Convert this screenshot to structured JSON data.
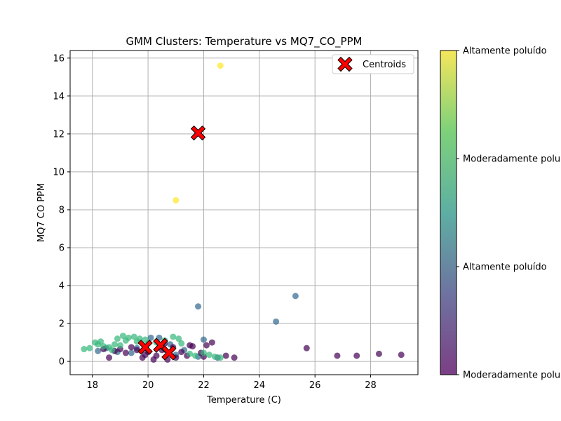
{
  "chart_data": {
    "type": "scatter",
    "title": "GMM Clusters: Temperature vs MQ7_CO_PPM",
    "xlabel": "Temperature (C)",
    "ylabel": "MQ7 CO PPM",
    "xlim": [
      17.2,
      29.7
    ],
    "ylim": [
      -0.7,
      16.4
    ],
    "xticks": [
      18,
      20,
      22,
      24,
      26,
      28
    ],
    "yticks": [
      0,
      2,
      4,
      6,
      8,
      10,
      12,
      14,
      16
    ],
    "grid": true,
    "legend": {
      "placement": "top-right",
      "entries": [
        "Centroids"
      ]
    },
    "colorbar": {
      "colormap": "viridis",
      "range": [
        0,
        3
      ],
      "ticks": [
        0,
        1,
        2,
        3
      ],
      "tick_labels": [
        "Moderadamente poluído",
        "Altamente poluído",
        "Moderadamente poluído",
        "Altamente poluído"
      ]
    },
    "colors": {
      "cluster_0": "#440154",
      "cluster_1": "#31688e",
      "cluster_2": "#35b779",
      "cluster_3": "#fde725",
      "centroid_fill": "#ff0000",
      "centroid_edge": "#000000",
      "grid": "#b0b0b0"
    },
    "series": [
      {
        "cluster": 3,
        "points": [
          [
            22.6,
            15.6
          ],
          [
            21.0,
            8.5
          ]
        ]
      },
      {
        "cluster": 1,
        "points": [
          [
            21.8,
            2.9
          ],
          [
            25.3,
            3.45
          ],
          [
            24.6,
            2.1
          ],
          [
            22.0,
            1.15
          ],
          [
            20.1,
            1.25
          ],
          [
            18.2,
            0.55
          ],
          [
            18.9,
            0.5
          ],
          [
            19.6,
            0.7
          ],
          [
            20.4,
            1.25
          ],
          [
            21.3,
            0.6
          ],
          [
            21.8,
            0.25
          ],
          [
            22.5,
            0.2
          ],
          [
            18.5,
            0.7
          ],
          [
            19.4,
            0.45
          ],
          [
            20.8,
            0.9
          ],
          [
            21.0,
            0.35
          ]
        ]
      },
      {
        "cluster": 0,
        "points": [
          [
            25.7,
            0.7
          ],
          [
            26.8,
            0.3
          ],
          [
            27.5,
            0.3
          ],
          [
            28.3,
            0.4
          ],
          [
            29.1,
            0.35
          ],
          [
            23.1,
            0.2
          ],
          [
            22.8,
            0.3
          ],
          [
            22.3,
            1.0
          ],
          [
            22.1,
            0.85
          ],
          [
            21.6,
            0.8
          ],
          [
            21.2,
            0.5
          ],
          [
            21.0,
            0.2
          ],
          [
            20.9,
            0.75
          ],
          [
            20.7,
            0.1
          ],
          [
            20.5,
            0.6
          ],
          [
            20.3,
            0.3
          ],
          [
            20.0,
            0.5
          ],
          [
            19.8,
            0.2
          ],
          [
            19.6,
            0.6
          ],
          [
            19.4,
            0.75
          ],
          [
            19.2,
            0.45
          ],
          [
            19.0,
            0.65
          ],
          [
            18.8,
            0.55
          ],
          [
            18.6,
            0.2
          ],
          [
            18.4,
            0.65
          ],
          [
            21.4,
            0.3
          ],
          [
            21.9,
            0.45
          ],
          [
            22.0,
            0.25
          ],
          [
            21.5,
            0.85
          ],
          [
            20.6,
            0.95
          ],
          [
            20.2,
            0.1
          ],
          [
            19.9,
            0.35
          ]
        ]
      },
      {
        "cluster": 2,
        "points": [
          [
            17.7,
            0.65
          ],
          [
            17.9,
            0.7
          ],
          [
            18.1,
            1.0
          ],
          [
            18.2,
            0.9
          ],
          [
            18.3,
            1.05
          ],
          [
            18.4,
            0.8
          ],
          [
            18.6,
            0.75
          ],
          [
            18.8,
            0.9
          ],
          [
            18.9,
            1.2
          ],
          [
            19.1,
            1.35
          ],
          [
            19.2,
            1.1
          ],
          [
            19.3,
            1.25
          ],
          [
            19.5,
            1.3
          ],
          [
            19.7,
            1.2
          ],
          [
            19.9,
            1.15
          ],
          [
            20.0,
            0.95
          ],
          [
            20.3,
            1.0
          ],
          [
            20.6,
            1.1
          ],
          [
            20.9,
            1.3
          ],
          [
            21.1,
            1.2
          ],
          [
            21.2,
            0.95
          ],
          [
            21.5,
            0.4
          ],
          [
            21.7,
            0.3
          ],
          [
            22.0,
            0.45
          ],
          [
            22.2,
            0.35
          ],
          [
            22.4,
            0.25
          ],
          [
            22.6,
            0.2
          ],
          [
            19.0,
            0.85
          ],
          [
            19.6,
            1.05
          ],
          [
            18.7,
            0.6
          ]
        ]
      }
    ],
    "centroids": [
      [
        21.8,
        12.05
      ],
      [
        19.9,
        0.75
      ],
      [
        20.45,
        0.85
      ],
      [
        20.75,
        0.45
      ]
    ]
  }
}
